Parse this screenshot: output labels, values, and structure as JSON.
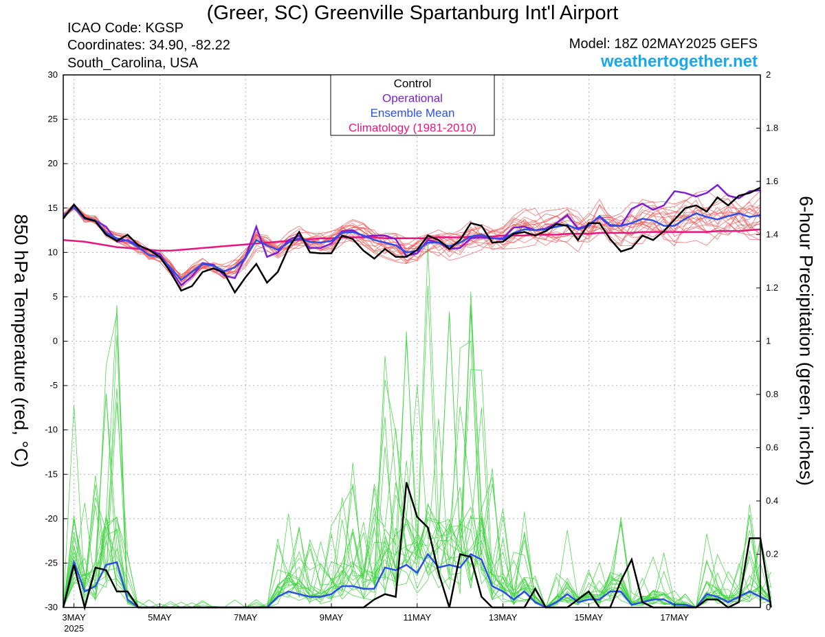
{
  "header": {
    "title": "(Greer, SC) Greenville Spartanburg Int'l Airport",
    "icao": "ICAO Code: KGSP",
    "coordinates": "Coordinates: 34.90, -82.22",
    "location": "South_Carolina, USA",
    "model": "Model: 18Z 02MAY2025 GEFS",
    "website": "weathertogether.net"
  },
  "colors": {
    "control": "#000000",
    "operational": "#7a1fd6",
    "ensemble_mean": "#2b4fe8",
    "climatology": "#e8157f",
    "members_temp": "#f25a5a",
    "members_precip": "#3fd43f",
    "website": "#1aa7ec"
  },
  "chart_data": {
    "type": "line",
    "ylabel_left": "850 hPa Temperature (red, °C)",
    "ylabel_right": "6-hour Precipitation (green, inches)",
    "ylim_left": [
      -30,
      30
    ],
    "ylim_right": [
      0,
      2
    ],
    "yticks_left": [
      "30",
      "25",
      "20",
      "15",
      "10",
      "5",
      "0",
      "-5",
      "-10",
      "-15",
      "-20",
      "-25",
      "-30"
    ],
    "yticks_right": [
      "2",
      "1.8",
      "1.6",
      "1.4",
      "1.2",
      "1",
      "0.8",
      "0.6",
      "0.4",
      "0.2",
      "0"
    ],
    "xticks": [
      {
        "label": "3MAY",
        "sub": "2025",
        "x": 0
      },
      {
        "label": "5MAY",
        "x": 2
      },
      {
        "label": "7MAY",
        "x": 4
      },
      {
        "label": "9MAY",
        "x": 6
      },
      {
        "label": "11MAY",
        "x": 8
      },
      {
        "label": "13MAY",
        "x": 10
      },
      {
        "label": "15MAY",
        "x": 12
      },
      {
        "label": "17MAY",
        "x": 14
      }
    ],
    "x_unit": "days from 00Z 3MAY 2025",
    "x_step_days": 0.25,
    "x_start": -0.25,
    "grid": true,
    "legend": {
      "placement": "top-center",
      "entries": [
        "Control",
        "Operational",
        "Ensemble Mean",
        "Climatology (1981-2010)"
      ]
    },
    "temperature": {
      "control": [
        13.8,
        15.4,
        13.9,
        13.5,
        12.0,
        11.3,
        12.0,
        10.8,
        10.3,
        9.5,
        7.8,
        5.7,
        6.2,
        7.8,
        8.2,
        7.7,
        5.5,
        7.2,
        8.7,
        6.6,
        7.8,
        10.5,
        12.3,
        10.0,
        9.9,
        9.9,
        11.9,
        11.5,
        10.2,
        9.3,
        10.4,
        9.5,
        9.5,
        10.3,
        11.9,
        11.4,
        10.4,
        11.4,
        13.3,
        13.0,
        11.1,
        11.2,
        12.1,
        12.3,
        11.9,
        12.4,
        13.2,
        13.0,
        11.4,
        13.3,
        13.3,
        11.5,
        10.1,
        10.5,
        11.9,
        11.4,
        12.4,
        13.7,
        15.0,
        15.3,
        14.6,
        16.2,
        15.3,
        16.4,
        16.7,
        17.3
      ],
      "operational": [
        14.0,
        15.3,
        13.9,
        13.6,
        12.9,
        11.2,
        11.4,
        10.8,
        10.3,
        9.8,
        8.1,
        6.3,
        7.3,
        8.8,
        8.6,
        7.4,
        7.1,
        9.5,
        12.9,
        9.5,
        10.0,
        11.4,
        11.9,
        10.5,
        10.5,
        11.0,
        12.4,
        12.5,
        11.8,
        11.9,
        11.9,
        11.5,
        9.6,
        9.9,
        11.4,
        11.1,
        10.4,
        10.5,
        11.6,
        11.7,
        11.6,
        11.6,
        12.8,
        12.9,
        12.5,
        12.7,
        13.3,
        14.2,
        12.7,
        13.1,
        14.0,
        13.0,
        13.0,
        14.9,
        15.5,
        14.8,
        15.3,
        16.9,
        16.7,
        16.3,
        16.7,
        17.6,
        16.4,
        16.1,
        16.9,
        17.0
      ],
      "ensemble_mean": [
        14.1,
        15.1,
        13.8,
        13.6,
        12.2,
        11.6,
        11.3,
        10.6,
        9.7,
        9.5,
        8.3,
        6.9,
        7.8,
        8.7,
        8.5,
        7.9,
        8.3,
        9.4,
        11.4,
        10.8,
        10.3,
        11.1,
        11.6,
        11.2,
        11.1,
        11.3,
        12.2,
        12.3,
        11.9,
        11.4,
        11.1,
        10.8,
        10.0,
        10.2,
        11.1,
        11.1,
        10.7,
        11.1,
        11.8,
        12.0,
        11.6,
        11.5,
        12.2,
        12.6,
        12.5,
        12.6,
        12.9,
        13.1,
        12.6,
        13.0,
        14.1,
        13.1,
        13.0,
        13.3,
        13.8,
        13.6,
        13.0,
        13.0,
        13.8,
        14.4,
        14.0,
        13.7,
        14.1,
        14.4,
        14.0,
        14.2
      ],
      "climatology": [
        11.4,
        11.3,
        11.2,
        11.0,
        10.8,
        10.6,
        10.5,
        10.4,
        10.3,
        10.2,
        10.2,
        10.3,
        10.4,
        10.5,
        10.6,
        10.7,
        10.8,
        10.9,
        11.0,
        11.1,
        11.2,
        11.3,
        11.4,
        11.5,
        11.6,
        11.6,
        11.7,
        11.7,
        11.7,
        11.7,
        11.6,
        11.6,
        11.6,
        11.6,
        11.6,
        11.7,
        11.7,
        11.7,
        11.8,
        11.8,
        11.8,
        11.9,
        11.9,
        11.9,
        12.0,
        12.0,
        12.0,
        12.1,
        12.1,
        12.1,
        12.2,
        12.2,
        12.2,
        12.2,
        12.3,
        12.3,
        12.3,
        12.3,
        12.3,
        12.3,
        12.3,
        12.4,
        12.4,
        12.4,
        12.5,
        12.6
      ],
      "members_count": 20,
      "members_spread": 1.8
    },
    "precipitation": {
      "control": [
        0,
        0.16,
        0,
        0.15,
        0.14,
        0.06,
        0.06,
        0,
        0,
        0,
        0,
        0,
        0,
        0,
        0,
        0,
        0,
        0,
        0,
        0,
        0,
        0,
        0,
        0,
        0,
        0,
        0,
        0,
        0,
        0.03,
        0.05,
        0.04,
        0.47,
        0.34,
        0.3,
        0.13,
        0,
        0.2,
        0.19,
        0.04,
        0,
        0,
        0,
        0,
        0.07,
        0,
        0,
        0,
        0.03,
        0.06,
        0,
        0,
        0.1,
        0.18,
        0.02,
        0,
        0,
        0,
        0,
        0,
        0.03,
        0.03,
        0,
        0.02,
        0.26,
        0.26,
        0
      ],
      "ensemble_mean": [
        0,
        0.17,
        0.06,
        0.08,
        0.16,
        0.17,
        0.03,
        0,
        0,
        0,
        0,
        0,
        0,
        0,
        0,
        0,
        0,
        0,
        0,
        0,
        0.04,
        0.06,
        0.05,
        0.04,
        0.04,
        0.05,
        0.08,
        0.08,
        0.07,
        0.07,
        0.15,
        0.14,
        0.16,
        0.13,
        0.2,
        0.15,
        0.16,
        0.15,
        0.2,
        0.18,
        0.08,
        0.06,
        0.03,
        0.06,
        0.02,
        0,
        0.02,
        0.05,
        0.02,
        0.03,
        0.03,
        0.06,
        0.06,
        0.01,
        0.02,
        0.03,
        0.03,
        0.01,
        0.01,
        0,
        0.05,
        0.04,
        0.02,
        0.04,
        0.06,
        0.04,
        0.02
      ]
    }
  }
}
